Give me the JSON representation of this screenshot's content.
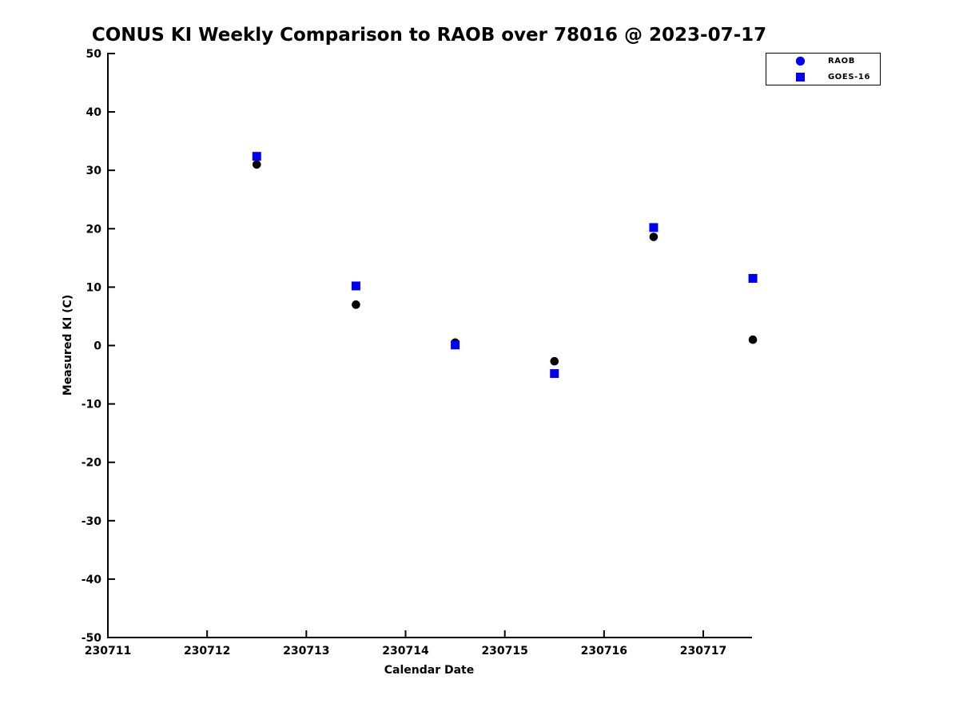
{
  "chart": {
    "legend": {
      "items": [
        {
          "label": "RAOB",
          "marker": "circle",
          "color": "#0000ee"
        },
        {
          "label": "GOES-16",
          "marker": "square",
          "color": "#0000ee"
        }
      ]
    }
  },
  "chart_data": {
    "type": "scatter",
    "title": "CONUS KI Weekly Comparison to RAOB over 78016 @ 2023-07-17",
    "xlabel": "Calendar Date",
    "ylabel": "Measured KI (C)",
    "x_ticks": [
      230711,
      230712,
      230713,
      230714,
      230715,
      230716,
      230717
    ],
    "y_ticks": [
      50,
      40,
      30,
      20,
      10,
      0,
      -10,
      -20,
      -30,
      -40,
      -50
    ],
    "xlim": [
      230711,
      230717.5
    ],
    "ylim": [
      -50,
      50
    ],
    "grid": false,
    "legend_position": "upper-right-outside",
    "x": [
      230712.5,
      230713.5,
      230714.5,
      230715.5,
      230716.5,
      230717.5
    ],
    "series": [
      {
        "name": "RAOB",
        "marker": "circle",
        "color": "#000000",
        "values": [
          31.0,
          7.0,
          0.5,
          -2.7,
          18.6,
          1.0
        ]
      },
      {
        "name": "GOES-16",
        "marker": "square",
        "color": "#0000ee",
        "values": [
          32.4,
          10.2,
          0.1,
          -4.8,
          20.2,
          11.5
        ]
      }
    ]
  }
}
